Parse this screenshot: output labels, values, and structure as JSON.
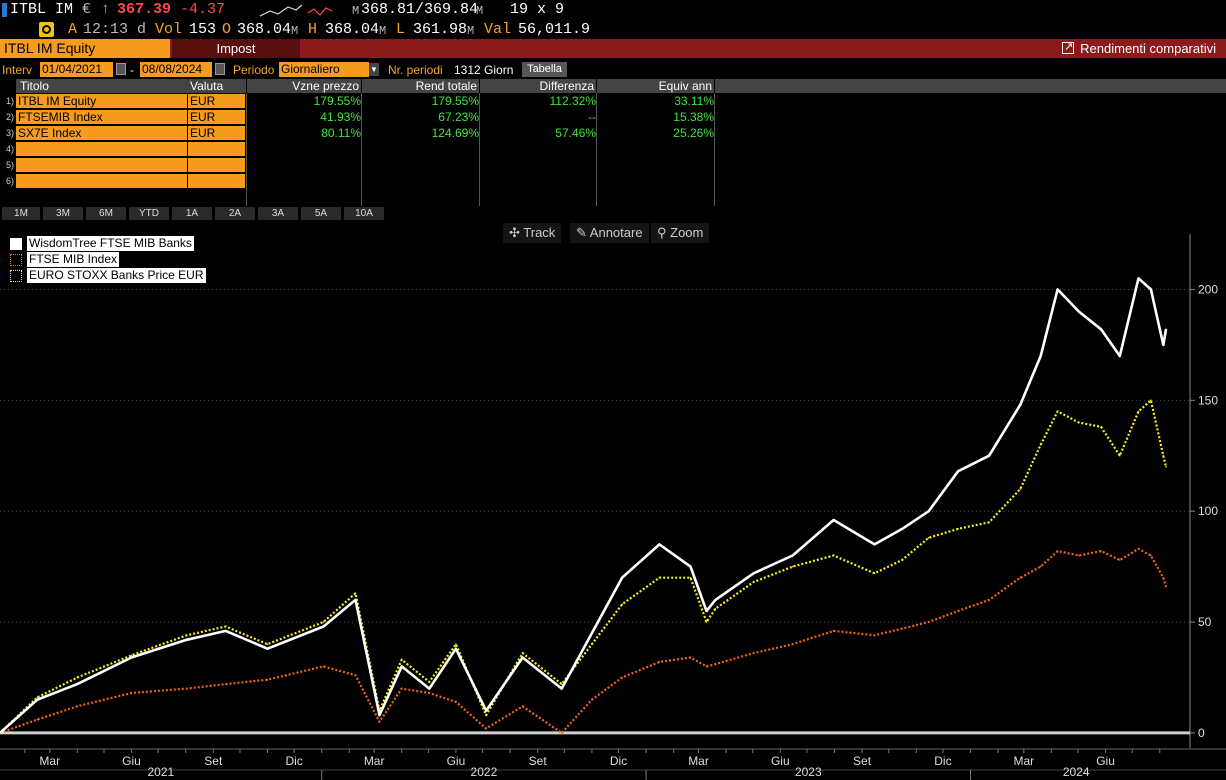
{
  "ticker": {
    "symbol": "ITBL IM",
    "currency": "€",
    "arrow": "↑",
    "price": "367.39",
    "change": "-4.37",
    "m_label": "M",
    "bidask": "368.81/369.84",
    "bidask_unit": "M",
    "size": "19 x 9",
    "row2": {
      "a_label": "A",
      "time": "12:13 d",
      "vol_label": "Vol",
      "vol": "153",
      "o_label": "O",
      "open": "368.04",
      "open_unit": "M",
      "h_label": "H",
      "high": "368.04",
      "high_unit": "M",
      "l_label": "L",
      "low": "361.98",
      "low_unit": "M",
      "val_label": "Val",
      "value": "56,011.9"
    }
  },
  "bar": {
    "security": "ITBL IM Equity",
    "impost": "Impost",
    "rendimenti": "Rendimenti comparativi"
  },
  "controls": {
    "interv_label": "Interv",
    "start": "01/04/2021",
    "dash": "-",
    "end": "08/08/2024",
    "periodo_label": "Periodo",
    "periodo": "Giornaliero",
    "nr_label": "Nr. periodi",
    "nr": "1312 Giorn",
    "tabella": "Tabella"
  },
  "table": {
    "headers": [
      "Titolo",
      "Valuta",
      "Vzne prezzo",
      "Rend totale",
      "Differenza",
      "Equiv ann"
    ],
    "rows": [
      {
        "n": "1)",
        "titolo": "ITBL IM Equity",
        "valuta": "EUR",
        "vzne": "179.55%",
        "rend": "179.55%",
        "diff": "112.32%",
        "equiv": "33.11%"
      },
      {
        "n": "2)",
        "titolo": "FTSEMIB Index",
        "valuta": "EUR",
        "vzne": "41.93%",
        "rend": "67.23%",
        "diff": "--",
        "equiv": "15.38%"
      },
      {
        "n": "3)",
        "titolo": "SX7E Index",
        "valuta": "EUR",
        "vzne": "80.11%",
        "rend": "124.69%",
        "diff": "57.46%",
        "equiv": "25.26%"
      },
      {
        "n": "4)",
        "titolo": "",
        "valuta": "",
        "vzne": "",
        "rend": "",
        "diff": "",
        "equiv": ""
      },
      {
        "n": "5)",
        "titolo": "",
        "valuta": "",
        "vzne": "",
        "rend": "",
        "diff": "",
        "equiv": ""
      },
      {
        "n": "6)",
        "titolo": "",
        "valuta": "",
        "vzne": "",
        "rend": "",
        "diff": "",
        "equiv": ""
      }
    ]
  },
  "periods": [
    "1M",
    "3M",
    "6M",
    "YTD",
    "1A",
    "2A",
    "3A",
    "5A",
    "10A"
  ],
  "tools": {
    "track": "Track",
    "annotate": "Annotare",
    "zoom": "Zoom"
  },
  "colors": {
    "white_series": "#ffffff",
    "orange_series": "#f06414",
    "yellow_series": "#f5f01e",
    "accent": "#f59b1e",
    "bar": "#8b1a1a"
  },
  "chart_data": {
    "type": "line",
    "title": "",
    "xlabel": "",
    "ylabel": "",
    "ylim": [
      -5,
      225
    ],
    "yticks": [
      0,
      50,
      100,
      150,
      200
    ],
    "x_month_labels": [
      "Mar",
      "Giu",
      "Set",
      "Dic",
      "Mar",
      "Giu",
      "Set",
      "Dic",
      "Mar",
      "Giu",
      "Set",
      "Dic",
      "Mar",
      "Giu"
    ],
    "x_year_labels": [
      "2021",
      "2022",
      "2023",
      "2024"
    ],
    "x": [
      "2021-01-04",
      "2021-02-15",
      "2021-04-01",
      "2021-06-01",
      "2021-08-02",
      "2021-09-15",
      "2021-11-01",
      "2022-01-03",
      "2022-02-08",
      "2022-03-07",
      "2022-04-01",
      "2022-05-02",
      "2022-06-01",
      "2022-07-05",
      "2022-08-15",
      "2022-09-28",
      "2022-11-01",
      "2022-12-05",
      "2023-01-16",
      "2023-02-20",
      "2023-03-10",
      "2023-03-20",
      "2023-05-02",
      "2023-06-15",
      "2023-07-31",
      "2023-09-15",
      "2023-10-16",
      "2023-11-15",
      "2023-12-18",
      "2024-01-22",
      "2024-02-26",
      "2024-03-20",
      "2024-04-08",
      "2024-05-02",
      "2024-05-27",
      "2024-06-17",
      "2024-07-08",
      "2024-07-22",
      "2024-08-05",
      "2024-08-08"
    ],
    "series": [
      {
        "name": "WisdomTree FTSE MIB Banks",
        "style": "solid",
        "color": "#ffffff",
        "values": [
          0,
          15,
          22,
          34,
          42,
          46,
          38,
          48,
          60,
          8,
          30,
          20,
          38,
          10,
          34,
          20,
          45,
          70,
          85,
          75,
          55,
          60,
          72,
          80,
          96,
          85,
          92,
          100,
          118,
          125,
          148,
          170,
          200,
          190,
          182,
          170,
          205,
          200,
          175,
          182
        ]
      },
      {
        "name": "FTSE MIB Index",
        "style": "dotted",
        "color": "#f06414",
        "values": [
          0,
          6,
          12,
          18,
          20,
          22,
          24,
          30,
          26,
          5,
          20,
          18,
          14,
          2,
          12,
          0,
          15,
          25,
          32,
          34,
          30,
          31,
          36,
          40,
          46,
          44,
          47,
          50,
          55,
          60,
          70,
          75,
          82,
          80,
          82,
          78,
          83,
          80,
          70,
          66
        ]
      },
      {
        "name": "EURO STOXX Banks Price EUR",
        "style": "dotted",
        "color": "#f5f01e",
        "values": [
          0,
          16,
          25,
          35,
          44,
          48,
          40,
          50,
          63,
          10,
          33,
          23,
          40,
          8,
          36,
          22,
          40,
          58,
          70,
          70,
          50,
          56,
          68,
          75,
          80,
          72,
          78,
          88,
          92,
          95,
          110,
          130,
          145,
          140,
          138,
          125,
          145,
          150,
          125,
          120
        ]
      }
    ]
  }
}
